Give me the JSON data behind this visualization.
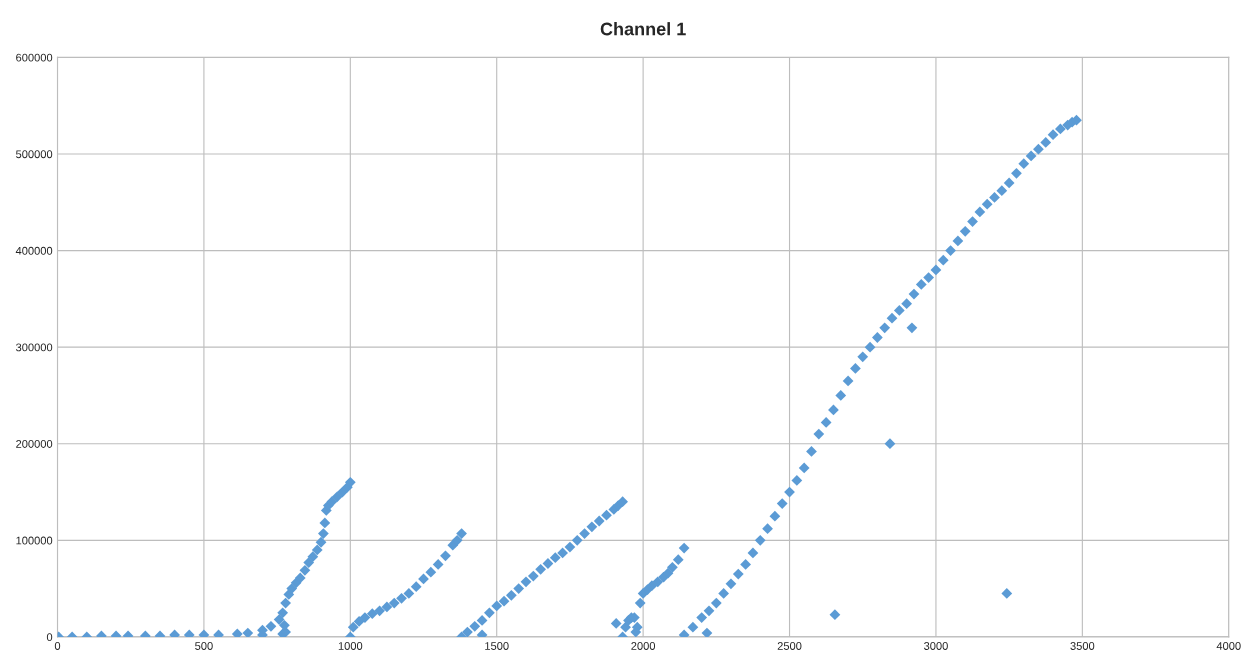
{
  "chart_data": {
    "type": "scatter",
    "title": "Channel 1",
    "series": [
      {
        "color": "#5b9bd5",
        "x": [
          4,
          50,
          100,
          150,
          200,
          241,
          300,
          350,
          400,
          450,
          500,
          550,
          614,
          650,
          700,
          729,
          757,
          769,
          779,
          790,
          800,
          815,
          829,
          845,
          858,
          872,
          887,
          900,
          908,
          913,
          918,
          925,
          937,
          955,
          973,
          990,
          1000,
          700,
          769,
          779,
          775,
          1000,
          1010,
          1030,
          1050,
          1075,
          1100,
          1125,
          1150,
          1175,
          1200,
          1225,
          1250,
          1275,
          1300,
          1325,
          1350,
          1365,
          1380,
          1380,
          1400,
          1425,
          1450,
          1475,
          1500,
          1525,
          1550,
          1575,
          1600,
          1625,
          1650,
          1675,
          1700,
          1725,
          1750,
          1775,
          1800,
          1825,
          1850,
          1875,
          1900,
          1915,
          1930,
          1450,
          1908,
          1930,
          1940,
          1950,
          1960,
          1970,
          1975,
          1980,
          1990,
          2000,
          2015,
          2030,
          2050,
          2070,
          2085,
          2100,
          2120,
          2140,
          2140,
          2170,
          2200,
          2225,
          2250,
          2275,
          2300,
          2325,
          2350,
          2375,
          2400,
          2425,
          2450,
          2475,
          2500,
          2525,
          2550,
          2575,
          2600,
          2625,
          2650,
          2675,
          2700,
          2725,
          2750,
          2775,
          2800,
          2825,
          2850,
          2875,
          2900,
          2925,
          2950,
          2975,
          3000,
          3025,
          3050,
          3075,
          3100,
          3125,
          3150,
          3175,
          3200,
          3225,
          3250,
          3275,
          3300,
          3325,
          3350,
          3375,
          3400,
          3425,
          3450,
          3465,
          3480,
          2218,
          2655,
          2843,
          3242,
          2918
        ],
        "values": [
          0,
          0,
          0,
          1000,
          1000,
          1000,
          1000,
          1000,
          2000,
          2000,
          2000,
          2000,
          3000,
          4000,
          7000,
          11000,
          18000,
          25000,
          35000,
          44000,
          50000,
          56000,
          61000,
          69000,
          77000,
          83000,
          90000,
          98000,
          107000,
          118000,
          131000,
          136000,
          140000,
          145000,
          150000,
          155000,
          160000,
          2000,
          3000,
          5000,
          12000,
          0,
          10000,
          16000,
          20000,
          24000,
          27000,
          31000,
          35000,
          40000,
          45000,
          52000,
          60000,
          67000,
          75000,
          84000,
          95000,
          100000,
          107000,
          0,
          5000,
          11000,
          17000,
          25000,
          32000,
          37000,
          43000,
          50000,
          57000,
          63000,
          70000,
          76000,
          82000,
          87000,
          93000,
          100000,
          107000,
          114000,
          120000,
          126000,
          132000,
          136000,
          140000,
          2000,
          14000,
          0,
          10000,
          17000,
          20000,
          20000,
          5000,
          10000,
          35000,
          45000,
          49000,
          53000,
          57000,
          62000,
          66000,
          72000,
          80000,
          92000,
          2000,
          10000,
          20000,
          27000,
          35000,
          45000,
          55000,
          65000,
          75000,
          87000,
          100000,
          112000,
          125000,
          138000,
          150000,
          162000,
          175000,
          192000,
          210000,
          222000,
          235000,
          250000,
          265000,
          278000,
          290000,
          300000,
          310000,
          320000,
          330000,
          338000,
          345000,
          355000,
          365000,
          372000,
          380000,
          390000,
          400000,
          410000,
          420000,
          430000,
          440000,
          448000,
          455000,
          462000,
          470000,
          480000,
          490000,
          498000,
          505000,
          512000,
          520000,
          526000,
          530000,
          533000,
          535000,
          4000,
          23000,
          200000,
          45000,
          320000
        ]
      }
    ],
    "marker": "diamond",
    "xlim": [
      0,
      4000
    ],
    "xticks": [
      0,
      500,
      1000,
      1500,
      2000,
      2500,
      3000,
      3500,
      4000
    ],
    "ylim": [
      0,
      600000
    ],
    "yticks": [
      0,
      100000,
      200000,
      300000,
      400000,
      500000,
      600000
    ],
    "grid": true
  }
}
